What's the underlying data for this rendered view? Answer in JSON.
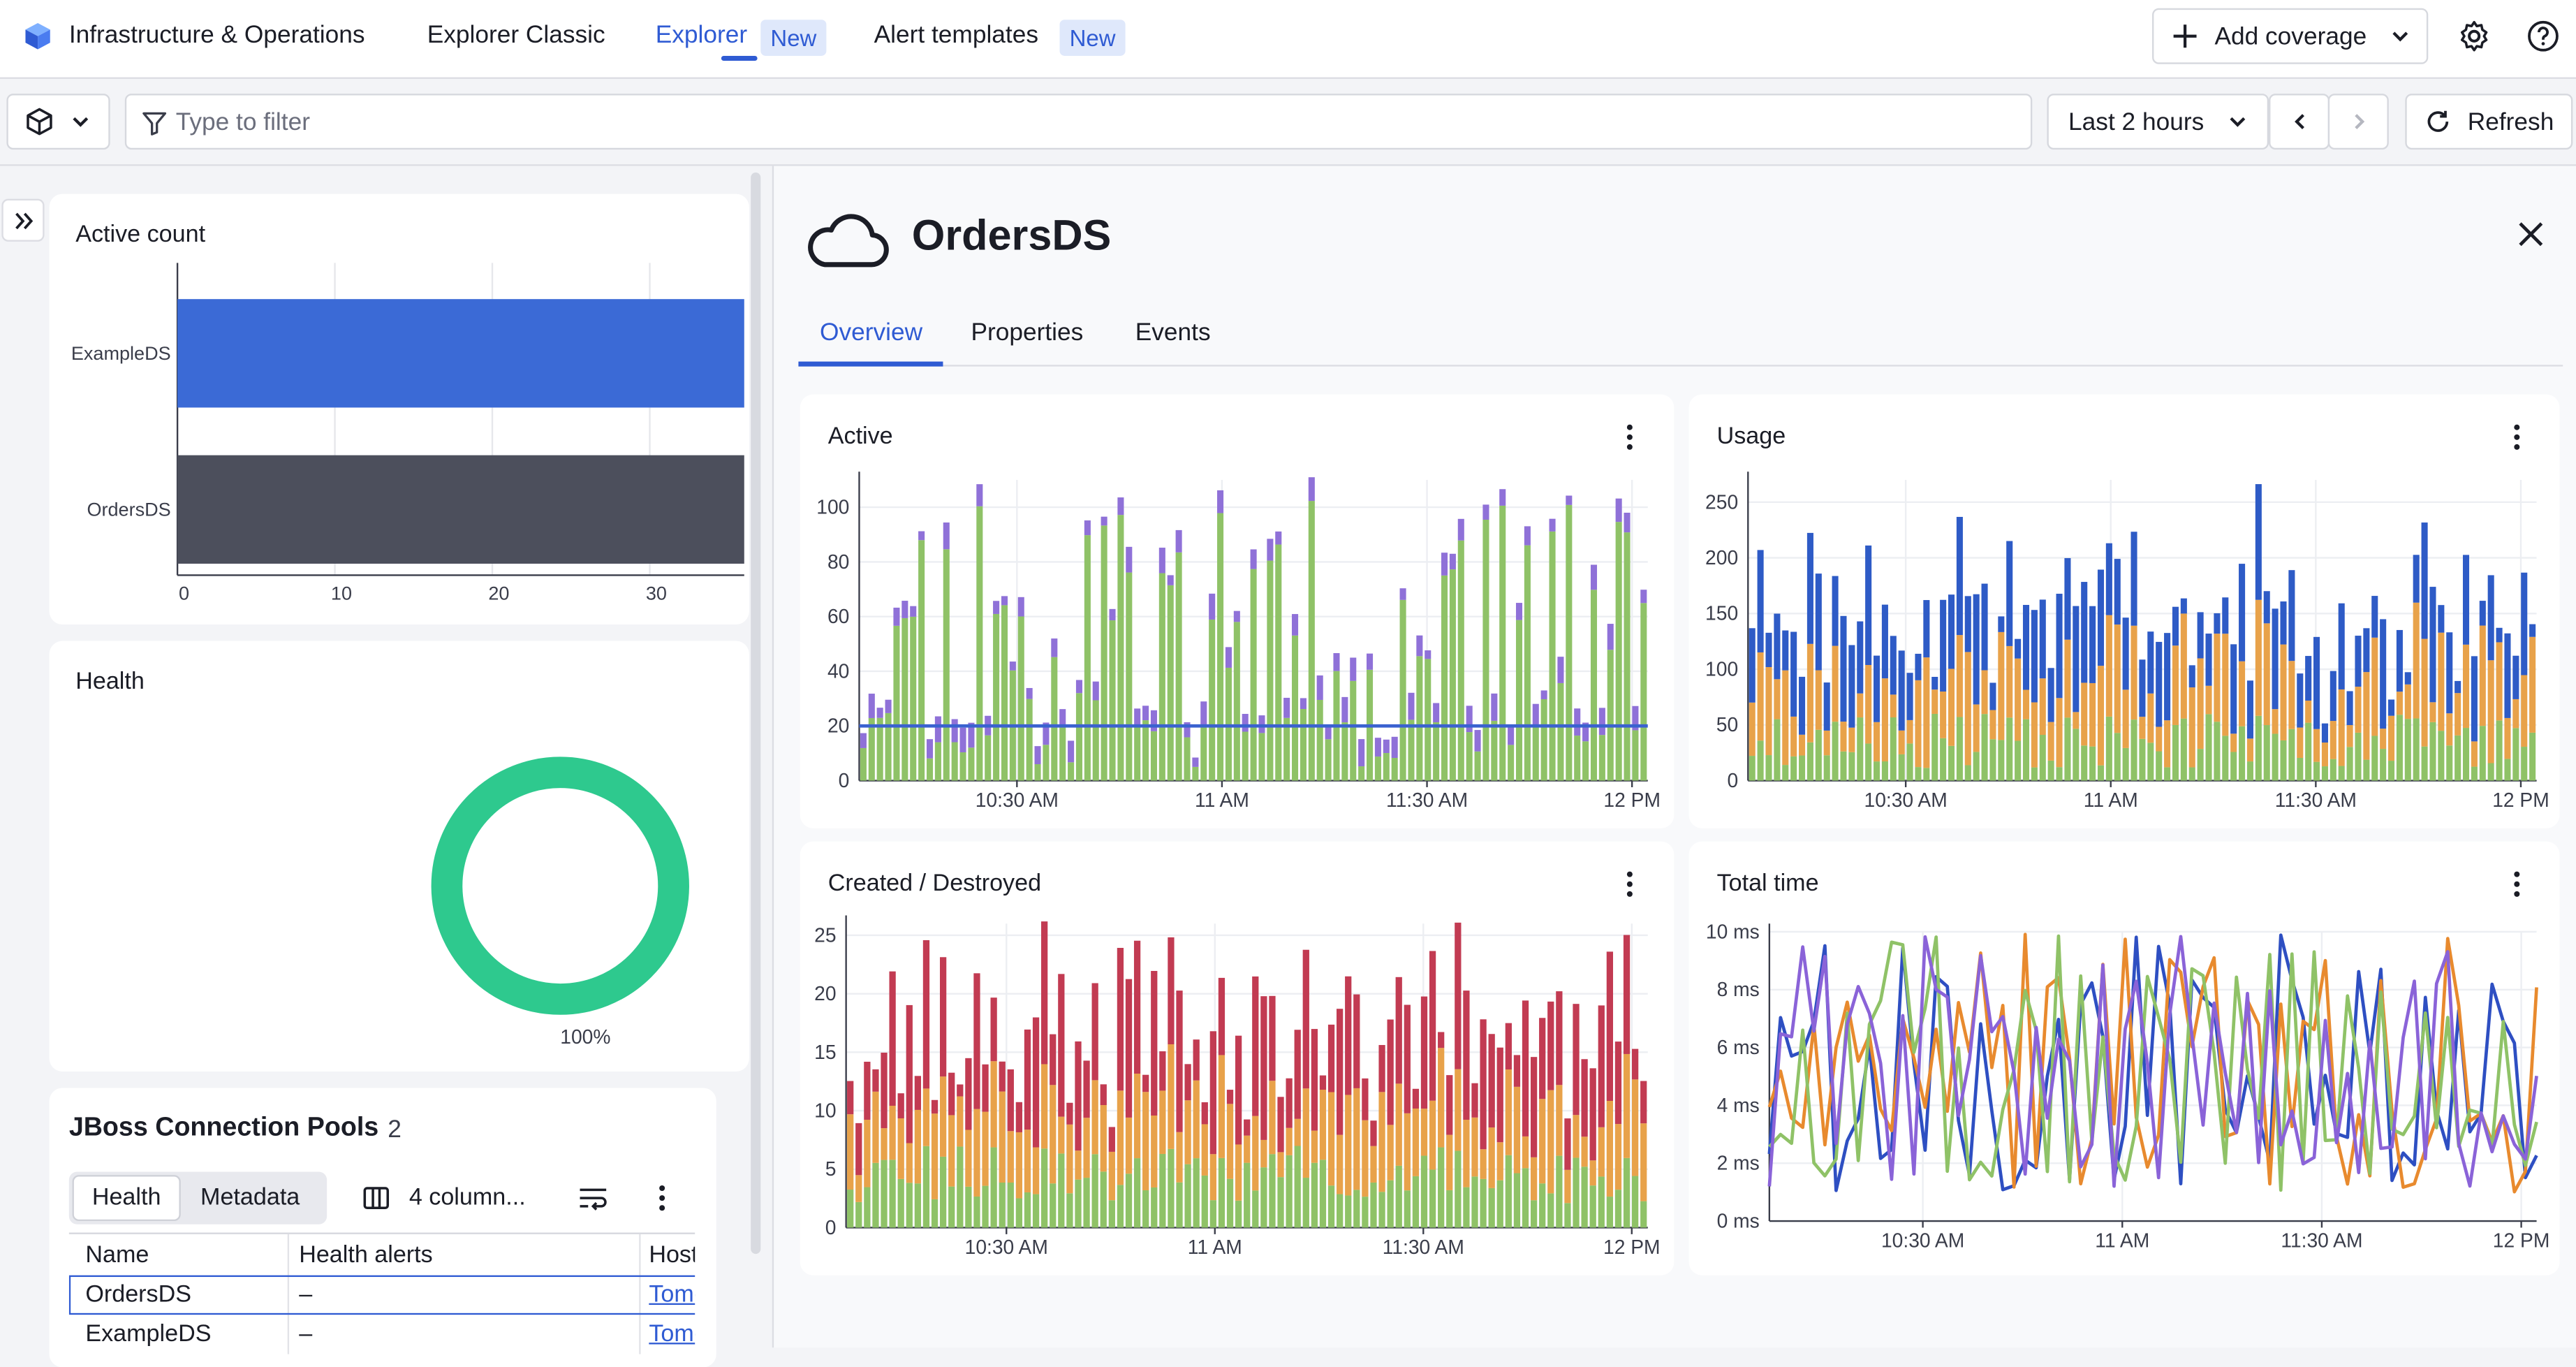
{
  "nav": {
    "app_title": "Infrastructure & Operations",
    "tabs": [
      {
        "label": "Explorer Classic",
        "badge": ""
      },
      {
        "label": "Explorer",
        "badge": "New"
      },
      {
        "label": "Alert templates",
        "badge": "New"
      }
    ],
    "add_coverage_label": "Add coverage"
  },
  "filterbar": {
    "filter_placeholder": "Type to filter",
    "timeframe": "Last 2 hours",
    "refresh_label": "Refresh"
  },
  "left": {
    "active_count": {
      "title": "Active count",
      "categories": [
        "ExampleDS",
        "OrdersDS"
      ],
      "values": [
        36,
        36
      ],
      "xticks": [
        "0",
        "10",
        "20",
        "30"
      ],
      "colors": [
        "#3b6ad6",
        "#4c4f5c"
      ]
    },
    "health": {
      "title": "Health",
      "percent_label": "100%",
      "value": 1.0,
      "color": "#2ec98e"
    },
    "pools": {
      "title": "JBoss Connection Pools",
      "count": "2",
      "segments": [
        "Health",
        "Metadata"
      ],
      "columns_label": "4 column...",
      "headers": [
        "Name",
        "Health alerts",
        "Host"
      ],
      "rows": [
        {
          "name": "OrdersDS",
          "alerts": "–",
          "host": "Tom-"
        },
        {
          "name": "ExampleDS",
          "alerts": "–",
          "host": "Tom-"
        }
      ]
    }
  },
  "detail": {
    "title": "OrdersDS",
    "tabs": [
      "Overview",
      "Properties",
      "Events"
    ],
    "charts": {
      "active": {
        "title": "Active",
        "yticks": [
          "100",
          "80",
          "60",
          "40",
          "20",
          "0"
        ],
        "xticks": [
          "10:30 AM",
          "11 AM",
          "11:30 AM",
          "12 PM"
        ],
        "threshold": 20,
        "colors": [
          "#8fc267",
          "#8f71d8",
          "#3a62d0"
        ]
      },
      "usage": {
        "title": "Usage",
        "yticks": [
          "250",
          "200",
          "150",
          "100",
          "50",
          "0"
        ],
        "xticks": [
          "10:30 AM",
          "11 AM",
          "11:30 AM",
          "12 PM"
        ],
        "colors": [
          "#8fc267",
          "#e8a24a",
          "#2e5bc6"
        ]
      },
      "created": {
        "title": "Created / Destroyed",
        "yticks": [
          "25",
          "20",
          "15",
          "10",
          "5",
          "0"
        ],
        "xticks": [
          "10:30 AM",
          "11 AM",
          "11:30 AM",
          "12 PM"
        ],
        "colors": [
          "#8fc267",
          "#e8a24a",
          "#c23b52"
        ]
      },
      "total": {
        "title": "Total time",
        "yticks": [
          "10 ms",
          "8 ms",
          "6 ms",
          "4 ms",
          "2 ms",
          "0 ms"
        ],
        "xticks": [
          "10:30 AM",
          "11 AM",
          "11:30 AM",
          "12 PM"
        ],
        "colors": [
          "#2e4fc2",
          "#e88a2e",
          "#8fc267",
          "#8a63d8"
        ]
      }
    }
  }
}
